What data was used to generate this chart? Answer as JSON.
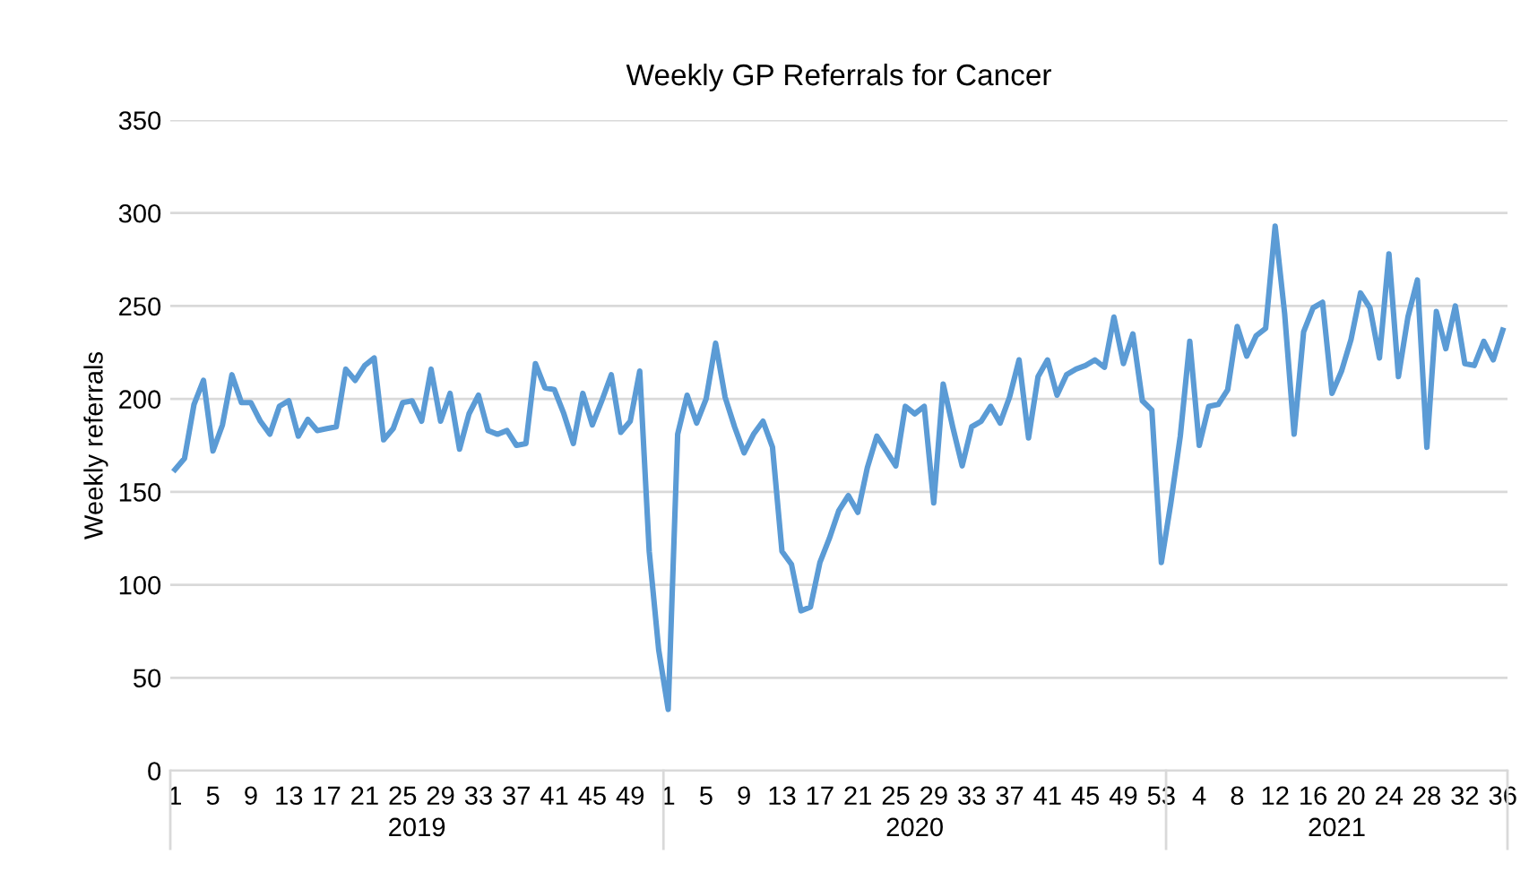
{
  "chart_data": {
    "type": "line",
    "title": "Weekly GP Referrals for Cancer",
    "ylabel": "Weekly referrals",
    "categories": [
      "1",
      null,
      null,
      null,
      "5",
      null,
      null,
      null,
      "9",
      null,
      null,
      null,
      "13",
      null,
      null,
      null,
      "17",
      null,
      null,
      null,
      "21",
      null,
      null,
      null,
      "25",
      null,
      null,
      null,
      "29",
      null,
      null,
      null,
      "33",
      null,
      null,
      null,
      "37",
      null,
      null,
      null,
      "41",
      null,
      null,
      null,
      "45",
      null,
      null,
      null,
      "49",
      null,
      null,
      null,
      "1",
      null,
      null,
      null,
      "5",
      null,
      null,
      null,
      "9",
      null,
      null,
      null,
      "13",
      null,
      null,
      null,
      "17",
      null,
      null,
      null,
      "21",
      null,
      null,
      null,
      "25",
      null,
      null,
      null,
      "29",
      null,
      null,
      null,
      "33",
      null,
      null,
      null,
      "37",
      null,
      null,
      null,
      "41",
      null,
      null,
      null,
      "45",
      null,
      null,
      null,
      "49",
      null,
      null,
      null,
      "53",
      null,
      null,
      null,
      "4",
      null,
      null,
      null,
      "8",
      null,
      null,
      null,
      "12",
      null,
      null,
      null,
      "16",
      null,
      null,
      null,
      "20",
      null,
      null,
      null,
      "24",
      null,
      null,
      null,
      "28",
      null,
      null,
      null,
      "32",
      null,
      null,
      null,
      "36"
    ],
    "series": [
      {
        "color": "#5b9bd5",
        "values": [
          162,
          168,
          197,
          210,
          172,
          186,
          213,
          198,
          198,
          188,
          181,
          196,
          199,
          180,
          189,
          183,
          184,
          185,
          216,
          210,
          218,
          222,
          178,
          184,
          198,
          199,
          188,
          216,
          188,
          203,
          173,
          192,
          202,
          183,
          181,
          183,
          175,
          176,
          219,
          206,
          205,
          192,
          176,
          203,
          186,
          199,
          213,
          182,
          188,
          215,
          118,
          65,
          33,
          181,
          202,
          187,
          200,
          230,
          201,
          185,
          171,
          181,
          188,
          174,
          118,
          111,
          86,
          88,
          112,
          125,
          140,
          148,
          139,
          163,
          180,
          172,
          164,
          196,
          192,
          196,
          144,
          208,
          185,
          164,
          185,
          188,
          196,
          187,
          201,
          221,
          179,
          212,
          221,
          202,
          213,
          216,
          218,
          221,
          217,
          244,
          219,
          235,
          199,
          194,
          112,
          144,
          180,
          231,
          175,
          196,
          197,
          205,
          239,
          223,
          234,
          238,
          293,
          246,
          181,
          236,
          249,
          252,
          203,
          215,
          232,
          257,
          249,
          222,
          278,
          212,
          244,
          264,
          174,
          247,
          227,
          250,
          219,
          218,
          231,
          221,
          237
        ]
      }
    ],
    "ylim": [
      0,
      350
    ],
    "yticks": [
      0,
      50,
      100,
      150,
      200,
      250,
      300,
      350
    ],
    "grid": "y",
    "legend": false,
    "marker": "none",
    "line_style": "solid",
    "annotations": [
      "2019",
      "2020",
      "2021"
    ]
  }
}
